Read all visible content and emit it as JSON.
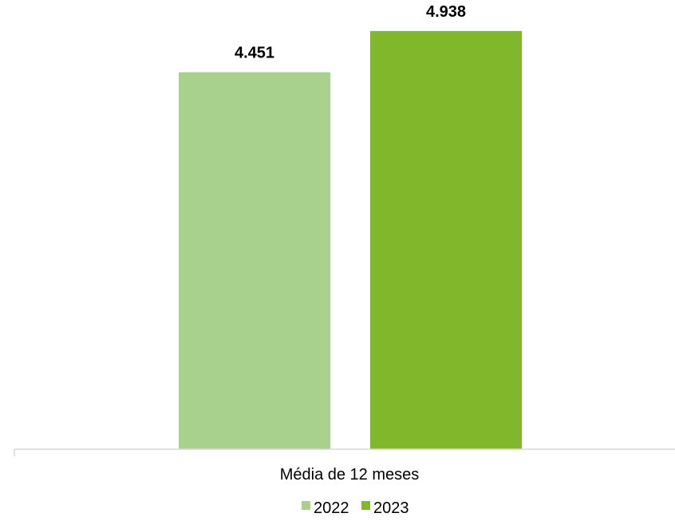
{
  "chart_data": {
    "type": "bar",
    "categories": [
      "Média de 12 meses"
    ],
    "series": [
      {
        "name": "2022",
        "values": [
          4.451
        ],
        "value_labels": [
          "4.451"
        ],
        "color": "#a9d18e"
      },
      {
        "name": "2023",
        "values": [
          4.938
        ],
        "value_labels": [
          "4.938"
        ],
        "color": "#80b72b"
      }
    ],
    "ylim": [
      0,
      5.2
    ],
    "grid": false,
    "legend_position": "bottom",
    "axis_color": "#d9d9d9"
  }
}
